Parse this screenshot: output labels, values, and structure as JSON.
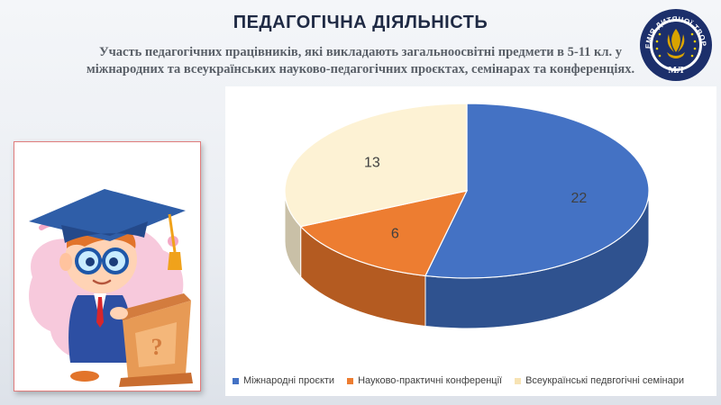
{
  "header": {
    "title": "ПЕДАГОГІЧНА ДІЯЛЬНІСТЬ",
    "subtitle_line1": "Участь педагогічних працівників, які викладають загальноосвітні предмети в 5-11 кл. у",
    "subtitle_line2": "міжнародних та всеукраїнських науково-педагогічних проєктах, семінарах та конференціях."
  },
  "logo": {
    "ring_text": "АКАДЕМІЯ ДИТЯЧОЇ ТВОРЧОСТІ",
    "initials": "МЛ",
    "colors": {
      "ring": "#1c2f6b",
      "flame": "#d9a300",
      "star": "#ffd400"
    }
  },
  "illustration": {
    "icon": "student-at-lectern-illustration"
  },
  "chart_data": {
    "type": "pie",
    "style": "3d",
    "categories": [
      "Міжнародні проєкти",
      "Науково-практичні конференції",
      "Всеукраїнські педвгогічні семінари"
    ],
    "values": [
      22,
      6,
      13
    ],
    "colors": [
      "#4472c4",
      "#ed7d31",
      "#fdf2d4"
    ],
    "side_colors": [
      "#2f528f",
      "#b45b21",
      "#c9c0a7"
    ],
    "data_labels": [
      "22",
      "6",
      "13"
    ],
    "legend_position": "bottom"
  }
}
